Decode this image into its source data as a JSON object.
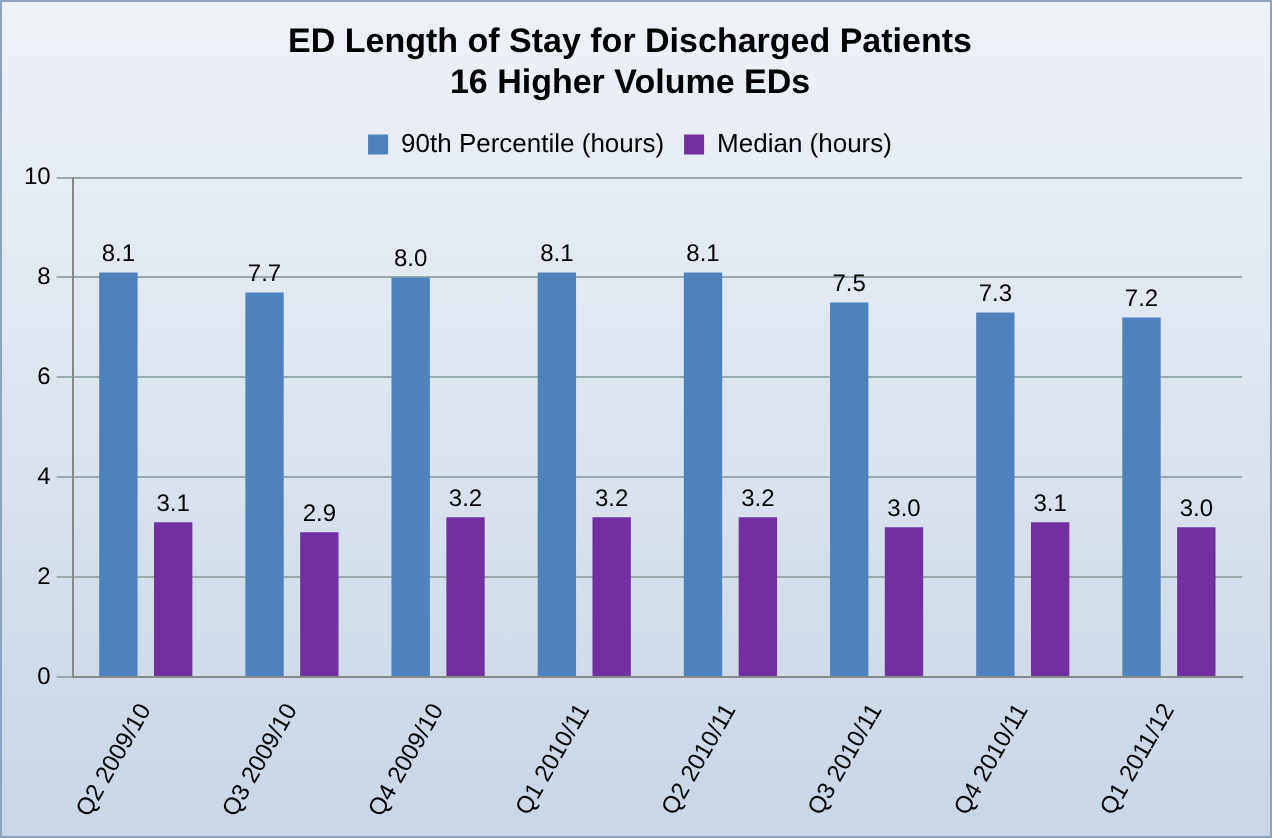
{
  "chart_data": {
    "type": "bar",
    "title": "ED Length of Stay for Discharged Patients",
    "subtitle": "16 Higher Volume EDs",
    "categories": [
      "Q2 2009/10",
      "Q3 2009/10",
      "Q4 2009/10",
      "Q1 2010/11",
      "Q2 2010/11",
      "Q3 2010/11",
      "Q4 2010/11",
      "Q1 2011/12"
    ],
    "series": [
      {
        "name": "90th Percentile (hours)",
        "color": "#4f81bd",
        "values": [
          8.1,
          7.7,
          8.0,
          8.1,
          8.1,
          7.5,
          7.3,
          7.2
        ],
        "value_labels": [
          "8.1",
          "7.7",
          "8.0",
          "8.1",
          "8.1",
          "7.5",
          "7.3",
          "7.2"
        ]
      },
      {
        "name": "Median (hours)",
        "color": "#7030a0",
        "values": [
          3.1,
          2.9,
          3.2,
          3.2,
          3.2,
          3.0,
          3.1,
          3.0
        ],
        "value_labels": [
          "3.1",
          "2.9",
          "3.2",
          "3.2",
          "3.2",
          "3.0",
          "3.1",
          "3.0"
        ]
      }
    ],
    "ylim": [
      0,
      10
    ],
    "yticks": [
      0,
      2,
      4,
      6,
      8,
      10
    ],
    "grid": "y",
    "legend": "top"
  }
}
